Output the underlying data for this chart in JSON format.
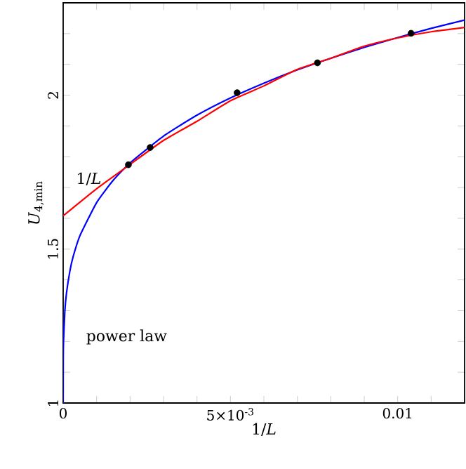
{
  "chart_data": {
    "type": "line",
    "xlabel": "1/*L*",
    "ylabel": "*U*$_{4,min}$",
    "xlim": [
      0,
      0.012
    ],
    "ylim": [
      1,
      2.3
    ],
    "xticks": [
      0,
      {
        "value": 0.001,
        "label": null
      },
      {
        "value": 0.002,
        "label": null
      },
      {
        "value": 0.003,
        "label": null
      },
      {
        "value": 0.004,
        "label": null
      },
      {
        "value": 0.005,
        "label": "5×10$^{-3}$"
      },
      {
        "value": 0.006,
        "label": null
      },
      {
        "value": 0.007,
        "label": null
      },
      {
        "value": 0.008,
        "label": null
      },
      {
        "value": 0.009,
        "label": null
      },
      0.01,
      {
        "value": 0.011,
        "label": null
      }
    ],
    "yticks": [
      1,
      {
        "value": 1.1,
        "label": null
      },
      {
        "value": 1.2,
        "label": null
      },
      {
        "value": 1.3,
        "label": null
      },
      {
        "value": 1.4,
        "label": null
      },
      1.5,
      {
        "value": 1.6,
        "label": null
      },
      {
        "value": 1.7,
        "label": null
      },
      {
        "value": 1.8,
        "label": null
      },
      {
        "value": 1.9,
        "label": null
      },
      2,
      {
        "value": 2.1,
        "label": null
      },
      {
        "value": 2.2,
        "label": null
      }
    ],
    "series": [
      {
        "color": "#0000ff",
        "x": [
          0,
          2e-06,
          1e-05,
          5e-05,
          0.0001,
          0.0002,
          0.0003,
          0.0005,
          0.001,
          0.0015,
          0.002,
          0.003,
          0.004,
          0.005,
          0.006,
          0.007,
          0.008,
          0.009,
          0.01,
          0.011,
          0.012
        ],
        "values": [
          1,
          1.129,
          1.196,
          1.298,
          1.357,
          1.428,
          1.476,
          1.543,
          1.651,
          1.724,
          1.78,
          1.867,
          1.935,
          1.991,
          2.039,
          2.082,
          2.12,
          2.155,
          2.187,
          2.217,
          2.244
        ]
      },
      {
        "color": "#ff0000",
        "x": [
          0,
          0.001,
          0.002,
          0.003,
          0.004,
          0.005,
          0.006,
          0.007,
          0.008,
          0.009,
          0.01,
          0.011,
          0.012
        ],
        "values": [
          1.608,
          1.696,
          1.775,
          1.853,
          1.915,
          1.982,
          2.03,
          2.084,
          2.12,
          2.159,
          2.186,
          2.206,
          2.22
        ]
      },
      {
        "type": "scatter",
        "color": "#000000",
        "marker": "circle",
        "x": [
          0.00195,
          0.0026,
          0.0052,
          0.0076,
          0.0104
        ],
        "values": [
          1.774,
          1.83,
          2.008,
          2.105,
          2.201
        ]
      }
    ],
    "annotations": [
      "1/*L*",
      "power law"
    ]
  }
}
